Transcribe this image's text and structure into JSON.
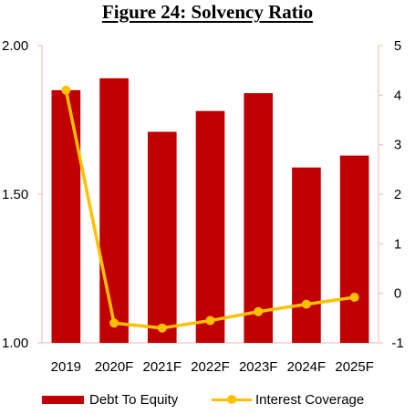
{
  "chart_data": {
    "type": "bar+line",
    "title": "Figure 24: Solvency Ratio",
    "categories": [
      "2019",
      "2020F",
      "2021F",
      "2022F",
      "2023F",
      "2024F",
      "2025F"
    ],
    "series": [
      {
        "name": "Debt To Equity",
        "type": "bar",
        "axis": "left",
        "color": "#C00000",
        "values": [
          1.85,
          1.89,
          1.71,
          1.78,
          1.84,
          1.59,
          1.63
        ]
      },
      {
        "name": "Interest Coverage",
        "type": "line",
        "axis": "right",
        "color": "#FFC000",
        "values": [
          4.1,
          -0.6,
          -0.7,
          -0.55,
          -0.37,
          -0.22,
          -0.08
        ]
      }
    ],
    "y_left": {
      "min": 1.0,
      "max": 2.0,
      "ticks": [
        "1.00",
        "1.50",
        "2.00"
      ]
    },
    "y_right": {
      "min": -1,
      "max": 5,
      "ticks": [
        "-1",
        "0",
        "1",
        "2",
        "3",
        "4",
        "5"
      ]
    },
    "grid": false,
    "legend_position": "bottom"
  }
}
